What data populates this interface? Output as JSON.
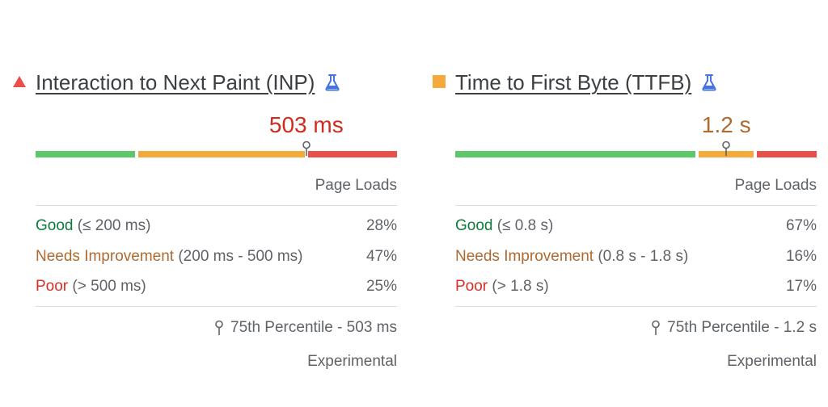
{
  "colors": {
    "good": "#0d7c3a",
    "needs_improvement": "#b06a2f",
    "poor": "#d93025",
    "bar_good": "#5cc86a",
    "bar_ni": "#f4a93a",
    "bar_poor": "#e8514a",
    "lab_icon": "#4374e0"
  },
  "inp": {
    "status_icon": "triangle-icon",
    "title": "Interaction to Next Paint (INP)",
    "value": "503 ms",
    "value_color": "#cf2b1f",
    "column_header": "Page Loads",
    "distribution": {
      "good": 0.28,
      "needs_improvement": 0.47,
      "poor": 0.25,
      "p75_position": 0.749
    },
    "rows": [
      {
        "label": "Good",
        "range": "(≤ 200 ms)",
        "pct": "28%"
      },
      {
        "label": "Needs Improvement",
        "range": "(200 ms - 500 ms)",
        "pct": "47%"
      },
      {
        "label": "Poor",
        "range": "(> 500 ms)",
        "pct": "25%"
      }
    ],
    "percentile": "75th Percentile - 503 ms",
    "footer": "Experimental"
  },
  "ttfb": {
    "status_icon": "square-icon",
    "title": "Time to First Byte (TTFB)",
    "value": "1.2 s",
    "value_color": "#b06a2f",
    "column_header": "Page Loads",
    "distribution": {
      "good": 0.67,
      "needs_improvement": 0.16,
      "poor": 0.17,
      "p75_position": 0.75
    },
    "rows": [
      {
        "label": "Good",
        "range": "(≤ 0.8 s)",
        "pct": "67%"
      },
      {
        "label": "Needs Improvement",
        "range": "(0.8 s - 1.8 s)",
        "pct": "16%"
      },
      {
        "label": "Poor",
        "range": "(> 1.8 s)",
        "pct": "17%"
      }
    ],
    "percentile": "75th Percentile - 1.2 s",
    "footer": "Experimental"
  }
}
